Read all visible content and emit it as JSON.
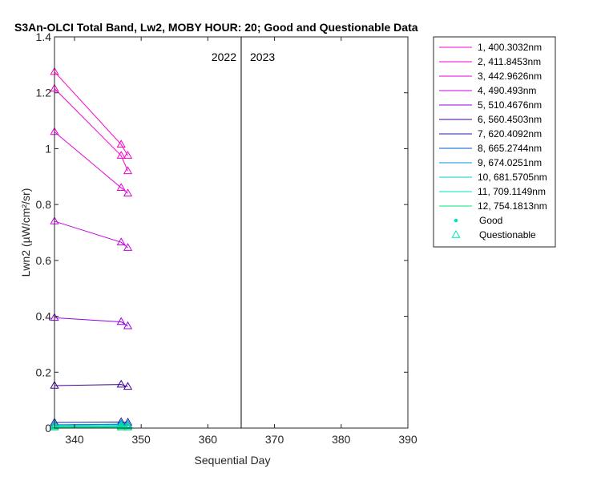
{
  "chart_data": {
    "type": "line",
    "title": "S3An-OLCI Total Band, Lw2, MOBY HOUR: 20;  Good and Questionable Data",
    "xlabel": "Sequential Day",
    "ylabel": "Lwn2 (µW/cm²/sr)",
    "xlim": [
      337,
      390
    ],
    "ylim": [
      0,
      1.4
    ],
    "xticks": [
      340,
      350,
      360,
      370,
      380,
      390
    ],
    "yticks": [
      0,
      0.2,
      0.4,
      0.6,
      0.8,
      1,
      1.2,
      1.4
    ],
    "ytick_labels": [
      "0",
      "0.2",
      "0.4",
      "0.6",
      "0.8",
      "1",
      "1.2",
      "1.4"
    ],
    "year_divider": 365,
    "year_labels": {
      "left": "2022",
      "right": "2023"
    },
    "legend_position": "outside-right",
    "series": [
      {
        "name": "1, 400.3032nm",
        "color": "#ff00c8",
        "x": [
          337,
          347,
          348
        ],
        "y": [
          1.275,
          1.015,
          0.975
        ]
      },
      {
        "name": "2, 411.8453nm",
        "color": "#f500d0",
        "x": [
          337,
          347,
          348
        ],
        "y": [
          1.215,
          0.975,
          0.92
        ]
      },
      {
        "name": "3, 442.9626nm",
        "color": "#e600d8",
        "x": [
          337,
          347,
          348
        ],
        "y": [
          1.06,
          0.86,
          0.84
        ]
      },
      {
        "name": "4,  490.493nm",
        "color": "#c800e6",
        "x": [
          337,
          347,
          348
        ],
        "y": [
          0.74,
          0.665,
          0.645
        ]
      },
      {
        "name": "5, 510.4676nm",
        "color": "#9600e6",
        "x": [
          337,
          347,
          348
        ],
        "y": [
          0.395,
          0.38,
          0.365
        ]
      },
      {
        "name": "6, 560.4503nm",
        "color": "#3c0096",
        "x": [
          337,
          347,
          348
        ],
        "y": [
          0.152,
          0.156,
          0.148
        ]
      },
      {
        "name": "7, 620.4092nm",
        "color": "#1e1ea0",
        "x": [
          337,
          347,
          348
        ],
        "y": [
          0.02,
          0.022,
          0.02
        ]
      },
      {
        "name": "8, 665.2744nm",
        "color": "#005ac8",
        "x": [
          337,
          347,
          348
        ],
        "y": [
          0.012,
          0.014,
          0.012
        ]
      },
      {
        "name": "9, 674.0251nm",
        "color": "#0096dc",
        "x": [
          337,
          347,
          348
        ],
        "y": [
          0.011,
          0.013,
          0.011
        ]
      },
      {
        "name": "10, 681.5705nm",
        "color": "#00d2d2",
        "x": [
          337,
          347,
          348
        ],
        "y": [
          0.008,
          0.009,
          0.008
        ]
      },
      {
        "name": "11, 709.1149nm",
        "color": "#00e6b4",
        "x": [
          337,
          347,
          348
        ],
        "y": [
          0.006,
          0.006,
          0.006
        ]
      },
      {
        "name": "12, 754.1813nm",
        "color": "#00e678",
        "x": [
          337,
          347,
          348
        ],
        "y": [
          0.003,
          0.003,
          0.003
        ]
      }
    ],
    "marker_legend": [
      {
        "name": "Good",
        "marker": "dot",
        "color": "#00e6b4"
      },
      {
        "name": "Questionable",
        "marker": "triangle",
        "color": "#00e6b4"
      }
    ]
  }
}
